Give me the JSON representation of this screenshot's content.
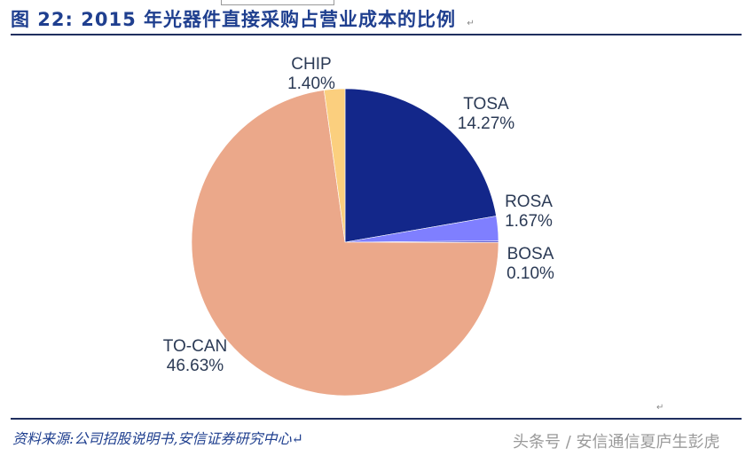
{
  "header": {
    "figure_label": "图 22:",
    "title_text": "2015 年光器件直接采购占营业成本的比例",
    "para_mark": "↵"
  },
  "footer": {
    "source": "资料来源:公司招股说明书,安信证券研究中心↵",
    "watermark": "头条号 / 安信通信夏庐生彭虎",
    "return_mark": "↵"
  },
  "colors": {
    "title": "#1f3f8f",
    "rule": "#1f2f5f",
    "TOSA": "#13278a",
    "ROSA": "#7f7fff",
    "BOSA": "#4c4ccc",
    "TO-CAN": "#eba88a",
    "CHIP": "#fbcf7e"
  },
  "labels": {
    "CHIP": {
      "name": "CHIP",
      "value": "1.40%"
    },
    "TOSA": {
      "name": "TOSA",
      "value": "14.27%"
    },
    "ROSA": {
      "name": "ROSA",
      "value": "1.67%"
    },
    "BOSA": {
      "name": "BOSA",
      "value": "0.10%"
    },
    "TO-CAN": {
      "name": "TO-CAN",
      "value": "46.63%"
    }
  },
  "chart_data": {
    "type": "pie",
    "title": "图 22:2015 年光器件直接采购占营业成本的比例",
    "categories": [
      "TOSA",
      "ROSA",
      "BOSA",
      "TO-CAN",
      "CHIP"
    ],
    "values": [
      14.27,
      1.67,
      0.1,
      46.63,
      1.4
    ],
    "unit": "%",
    "start_angle": "12 o'clock, clockwise",
    "legend": "none (data labels outside slices)",
    "source": "资料来源:公司招股说明书,安信证券研究中心"
  }
}
